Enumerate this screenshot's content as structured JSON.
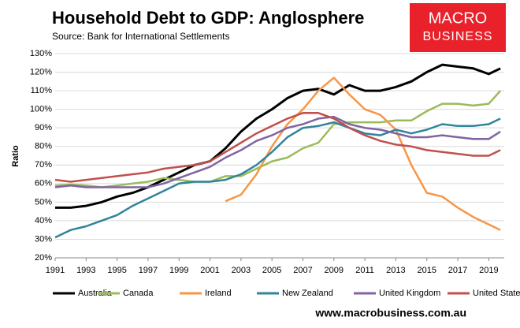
{
  "chart_data": {
    "type": "line",
    "title": "Household Debt to GDP: Anglosphere",
    "subtitle": "Source: Bank for International Settlements",
    "logo": [
      "MACRO",
      "BUSINESS"
    ],
    "footer": "www.macrobusiness.com.au",
    "ylabel": "Ratio",
    "x": [
      1991,
      1992,
      1993,
      1994,
      1995,
      1996,
      1997,
      1998,
      1999,
      2000,
      2001,
      2002,
      2003,
      2004,
      2005,
      2006,
      2007,
      2008,
      2009,
      2010,
      2011,
      2012,
      2013,
      2014,
      2015,
      2016,
      2017,
      2018,
      2019,
      2019.75
    ],
    "xlim": [
      1991,
      2020
    ],
    "xticks": [
      1991,
      1993,
      1995,
      1997,
      1999,
      2001,
      2003,
      2005,
      2007,
      2009,
      2011,
      2013,
      2015,
      2017,
      2019
    ],
    "ylim": [
      20,
      130
    ],
    "yticks": [
      {
        "value": 20,
        "label": "20%"
      },
      {
        "value": 30,
        "label": "30%"
      },
      {
        "value": 40,
        "label": "40%"
      },
      {
        "value": 50,
        "label": "50%"
      },
      {
        "value": 60,
        "label": "60%"
      },
      {
        "value": 70,
        "label": "70%"
      },
      {
        "value": 80,
        "label": "80%"
      },
      {
        "value": 90,
        "label": "90%"
      },
      {
        "value": 100,
        "label": "100%"
      },
      {
        "value": 110,
        "label": "110%"
      },
      {
        "value": 120,
        "label": "120%"
      },
      {
        "value": 130,
        "label": "130%"
      }
    ],
    "grid": true,
    "legend": "bottom",
    "series": [
      {
        "name": "Australia",
        "color": "#000000",
        "values": [
          47,
          47,
          48,
          50,
          53,
          55,
          58,
          62,
          66,
          70,
          72,
          79,
          88,
          95,
          100,
          106,
          110,
          111,
          108,
          113,
          110,
          110,
          112,
          115,
          120,
          124,
          123,
          122,
          119,
          122
        ]
      },
      {
        "name": "Canada",
        "color": "#9bbb59",
        "values": [
          59,
          59.5,
          59,
          58,
          59,
          60,
          61,
          63,
          62,
          61,
          61,
          64,
          64,
          68,
          72,
          74,
          79,
          82,
          92,
          93,
          93,
          93,
          94,
          94,
          99,
          103,
          103,
          102,
          103,
          110
        ]
      },
      {
        "name": "Ireland",
        "color": "#f79646",
        "values": [
          null,
          null,
          null,
          null,
          null,
          null,
          null,
          null,
          null,
          null,
          null,
          50.5,
          54,
          65,
          80,
          92,
          100,
          110,
          117,
          108,
          100,
          97,
          89,
          70,
          55,
          53,
          47,
          42,
          38,
          35
        ]
      },
      {
        "name": "New Zealand",
        "color": "#31849b",
        "values": [
          31,
          35,
          37,
          40,
          43,
          48,
          52,
          56,
          60,
          61,
          61,
          62,
          65,
          70,
          77,
          85,
          90,
          91,
          93,
          90,
          87,
          86,
          89,
          87,
          89,
          92,
          91,
          91,
          92,
          95
        ]
      },
      {
        "name": "United Kingdom",
        "color": "#8064a2",
        "values": [
          58,
          59,
          58,
          58,
          58,
          58,
          58,
          60,
          63,
          66,
          69,
          74,
          78,
          83,
          86,
          90,
          92,
          95,
          96,
          92,
          90,
          89,
          87,
          85,
          85,
          86,
          85,
          84,
          84,
          88
        ]
      },
      {
        "name": "United States",
        "color": "#c0504d",
        "values": [
          62,
          61,
          62,
          63,
          64,
          65,
          66,
          68,
          69,
          70,
          72,
          77,
          82,
          87,
          91,
          95,
          98,
          98,
          95,
          90,
          86,
          83,
          81,
          80,
          78,
          77,
          76,
          75,
          75,
          78
        ]
      }
    ]
  }
}
